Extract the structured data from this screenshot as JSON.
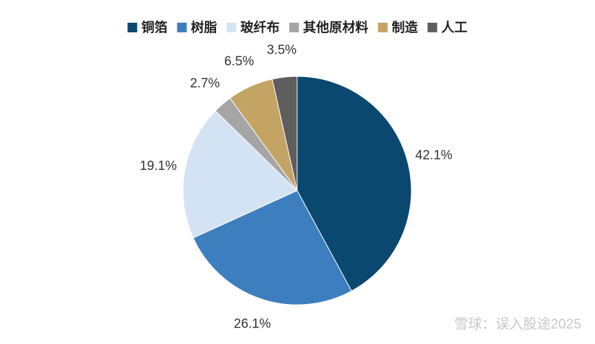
{
  "chart_data": {
    "type": "pie",
    "categories": [
      "铜箔",
      "树脂",
      "玻纤布",
      "其他原材料",
      "制造",
      "人工"
    ],
    "values": [
      42.1,
      26.1,
      19.1,
      2.7,
      6.5,
      3.5
    ],
    "value_labels": [
      "42.1%",
      "26.1%",
      "19.1%",
      "2.7%",
      "6.5%",
      "3.5%"
    ],
    "colors": [
      "#0b4870",
      "#3d7ebf",
      "#d3e3f3",
      "#a5a5a5",
      "#c4a465",
      "#5e5e5e"
    ],
    "legend": "top",
    "watermark": "雪球：误入股途2025"
  }
}
